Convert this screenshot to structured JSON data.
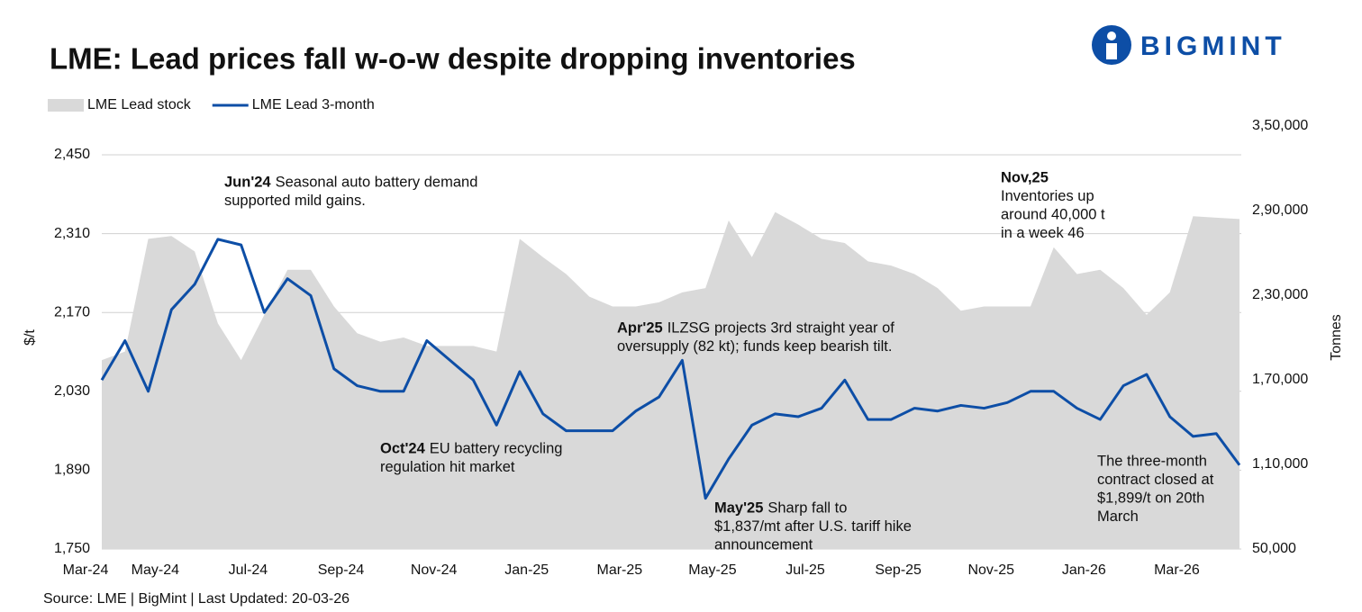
{
  "chart_data": {
    "type": "line",
    "title": "LME: Lead prices fall w-o-w despite dropping inventories",
    "logo": "BIGMINT",
    "source": "Source: LME | BigMint | Last Updated: 20-03-26",
    "y_label": "$/t",
    "y2_label": "Tonnes",
    "categories": [
      "Mar-24",
      null,
      null,
      "May-24",
      null,
      null,
      null,
      "Jul-24",
      null,
      null,
      null,
      "Sep-24",
      null,
      null,
      null,
      "Nov-24",
      null,
      null,
      null,
      "Jan-25",
      null,
      null,
      null,
      "Mar-25",
      null,
      null,
      null,
      "May-25",
      null,
      null,
      null,
      "Jul-25",
      null,
      null,
      null,
      "Sep-25",
      null,
      null,
      null,
      "Nov-25",
      null,
      null,
      null,
      "Jan-26",
      null,
      null,
      null,
      "Mar-26",
      null,
      null
    ],
    "series": [
      {
        "name": "LME Lead stock",
        "type": "area",
        "axis": "y2",
        "color": "#d9d9d9",
        "values": [
          184000,
          190000,
          270000,
          272000,
          261000,
          210000,
          184000,
          216000,
          248000,
          248000,
          222000,
          203000,
          197000,
          200000,
          194000,
          194000,
          194000,
          190000,
          270000,
          257000,
          245000,
          229000,
          222000,
          222000,
          225000,
          232000,
          235000,
          283000,
          257000,
          289000,
          280000,
          270000,
          267000,
          254000,
          251000,
          245000,
          235000,
          219000,
          222000,
          222000,
          222000,
          264000,
          245000,
          248000,
          235000,
          216000,
          232000,
          286000,
          285000,
          284000
        ]
      },
      {
        "name": "LME Lead 3-month",
        "type": "line",
        "color": "#0d4ea6",
        "values": [
          2050,
          2120,
          2030,
          2175,
          2220,
          2300,
          2290,
          2170,
          2230,
          2200,
          2070,
          2040,
          2030,
          2030,
          2120,
          2085,
          2050,
          1970,
          2065,
          1990,
          1960,
          1960,
          1960,
          1995,
          2020,
          2085,
          1840,
          1910,
          1970,
          1990,
          1985,
          2000,
          2050,
          1980,
          1980,
          2000,
          1995,
          2005,
          2000,
          2010,
          2030,
          2030,
          2000,
          1980,
          2040,
          2060,
          1985,
          1950,
          1955,
          1899
        ]
      }
    ],
    "ylim": [
      1750,
      2450
    ],
    "yticks": [
      {
        "value": 1750,
        "label": "1,750"
      },
      {
        "value": 1890,
        "label": "1,890"
      },
      {
        "value": 2030,
        "label": "2,030"
      },
      {
        "value": 2170,
        "label": "2,170"
      },
      {
        "value": 2310,
        "label": "2,310"
      },
      {
        "value": 2450,
        "label": "2,450"
      }
    ],
    "y2lim": [
      50000,
      350000
    ],
    "y2ticks": [
      {
        "value": 50000,
        "label": "50,000"
      },
      {
        "value": 110000,
        "label": "1,10,000"
      },
      {
        "value": 170000,
        "label": "1,70,000"
      },
      {
        "value": 230000,
        "label": "2,30,000"
      },
      {
        "value": 290000,
        "label": "2,90,000"
      },
      {
        "value": 350000,
        "label": "3,50,000"
      }
    ],
    "grid": true,
    "annotations": [
      {
        "lead": "Jun'24",
        "lines": [
          "Seasonal auto battery demand",
          "supported mild gains."
        ]
      },
      {
        "lead": "Oct'24",
        "lines": [
          "EU battery recycling",
          "regulation hit market"
        ]
      },
      {
        "lead": "Apr'25",
        "lines": [
          "ILZSG projects 3rd straight year of",
          "oversupply (82 kt); funds keep bearish tilt."
        ]
      },
      {
        "lead": "May'25",
        "lines": [
          "Sharp fall to",
          "$1,837/mt after U.S. tariff hike",
          "announcement"
        ]
      },
      {
        "lead": "Nov,25",
        "lines": [
          "Inventories up",
          "around 40,000 t",
          "in a week 46"
        ]
      },
      {
        "lines": [
          "The three-month",
          "contract closed at",
          "$1,899/t on 20th",
          "March"
        ]
      }
    ]
  }
}
